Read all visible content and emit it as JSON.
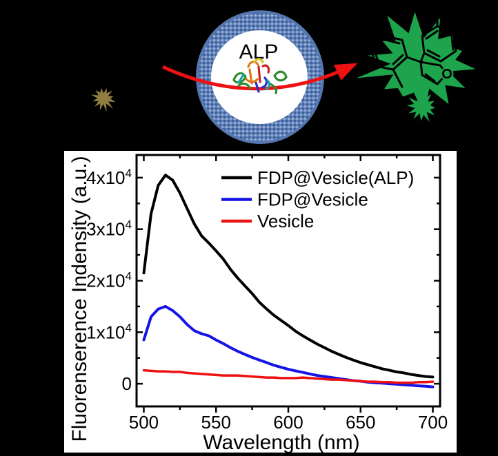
{
  "colors": {
    "background": "#000000",
    "panel": "#ffffff",
    "vesicle_ring": "#6585bb",
    "vesicle_ring_dark": "#3c5d99",
    "vesicle_ring_light": "#a9c1e2",
    "substrate_star": "#8f7d42",
    "product_star": "#1da44c",
    "arrow_red": "#ee1111",
    "axis_black": "#000000"
  },
  "scheme": {
    "alp_label": "ALP",
    "oxygen_label": "O"
  },
  "chart_data": {
    "type": "line",
    "title": "",
    "xlabel": "Wavelength (nm)",
    "ylabel": "Fluorenserence Indensity (a.u.)",
    "xlim": [
      495,
      705
    ],
    "ylim": [
      -4400,
      44400
    ],
    "xticks": [
      500,
      550,
      600,
      650,
      700
    ],
    "xtick_labels": [
      "500",
      "550",
      "600",
      "650",
      "700"
    ],
    "xminorticks": [
      525,
      575,
      625,
      675
    ],
    "yticks": [
      0,
      10000,
      20000,
      30000,
      40000
    ],
    "ytick_labels": [
      "0",
      "1x10^4",
      "2x10^4",
      "3x10^4",
      "4x10^4"
    ],
    "yminorticks": [
      5000,
      15000,
      25000,
      35000
    ],
    "grid": false,
    "legend_position": "top-right-inside",
    "x": [
      500,
      505,
      510,
      515,
      520,
      525,
      530,
      535,
      540,
      545,
      550,
      555,
      560,
      565,
      570,
      575,
      580,
      585,
      590,
      595,
      600,
      605,
      610,
      615,
      620,
      625,
      630,
      635,
      640,
      645,
      650,
      655,
      660,
      665,
      670,
      675,
      680,
      685,
      690,
      695,
      700
    ],
    "series": [
      {
        "name": "FDP@Vesicle(ALP)",
        "color": "#000000",
        "width": 4,
        "y": [
          21500,
          33000,
          38500,
          40500,
          39500,
          37000,
          34000,
          31000,
          28700,
          27300,
          25800,
          24200,
          22200,
          20500,
          19000,
          17500,
          15800,
          14500,
          13300,
          12300,
          11300,
          10200,
          9300,
          8500,
          7700,
          7000,
          6300,
          5700,
          5100,
          4600,
          4100,
          3700,
          3300,
          2900,
          2600,
          2300,
          2100,
          1800,
          1600,
          1400,
          1300
        ]
      },
      {
        "name": "FDP@Vesicle",
        "color": "#1414e6",
        "width": 4,
        "y": [
          8500,
          13000,
          14500,
          15000,
          14200,
          13000,
          11500,
          10300,
          9700,
          9300,
          8500,
          7800,
          7000,
          6300,
          5700,
          5100,
          4600,
          4100,
          3600,
          3200,
          2800,
          2500,
          2200,
          1900,
          1600,
          1400,
          1200,
          1000,
          800,
          600,
          500,
          300,
          200,
          100,
          0,
          -100,
          -200,
          -300,
          -400,
          -500,
          -600
        ]
      },
      {
        "name": "Vesicle",
        "color": "#ee1111",
        "width": 3.5,
        "y": [
          2600,
          2500,
          2400,
          2400,
          2300,
          2300,
          2100,
          2000,
          1900,
          1800,
          1700,
          1600,
          1600,
          1600,
          1500,
          1400,
          1300,
          1200,
          1200,
          1100,
          1100,
          1100,
          1200,
          1100,
          1000,
          900,
          800,
          800,
          700,
          600,
          500,
          400,
          400,
          300,
          300,
          200,
          200,
          200,
          300,
          300,
          400
        ]
      }
    ]
  }
}
